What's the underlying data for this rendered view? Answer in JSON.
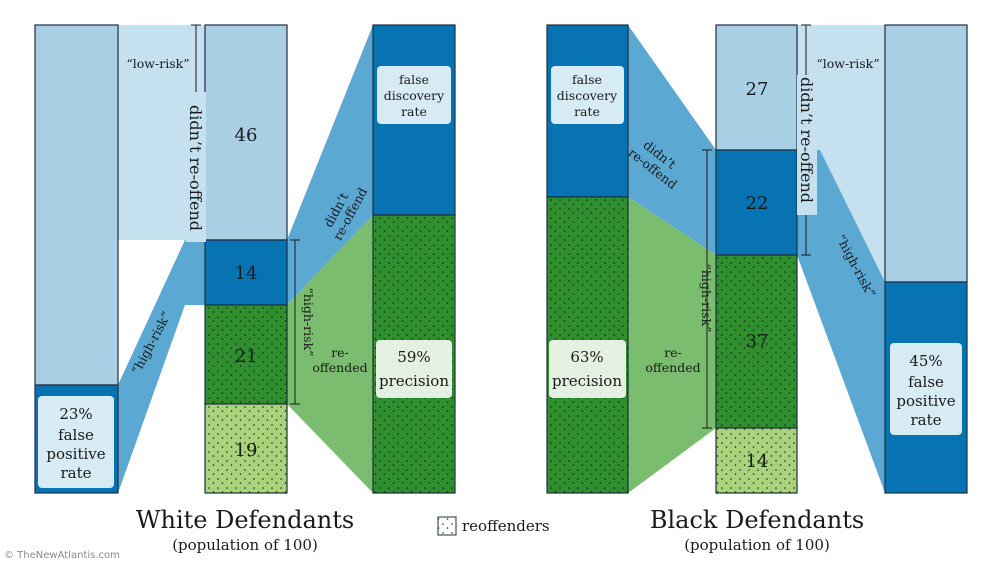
{
  "colors": {
    "light_blue": "#a9cfe4",
    "pale_blue": "#c5e0ef",
    "mid_blue": "#5ba8d3",
    "dark_blue": "#0873b2",
    "green": "#2f8f2f",
    "light_green": "#aad27c",
    "flow_green": "#7bbd6e",
    "outline": "#1e3040"
  },
  "white": {
    "title": "White Defendants",
    "subtitle": "(population of 100)",
    "low_risk": "“low-risk”",
    "high_risk": "“high-risk”",
    "didnt_reoffend": "didn’t re-offend",
    "fpr_pct": "23%",
    "fpr_l1": "false",
    "fpr_l2": "positive",
    "fpr_l3": "rate",
    "n_low_nonre": "46",
    "n_high_nonre": "14",
    "n_high_re": "21",
    "n_low_re": "19",
    "high_risk_bracket": "“high-risk”",
    "didnt_l1": "didn’t",
    "didnt_l2": "re-offend",
    "reoff_l1": "re-",
    "reoff_l2": "offended",
    "fdr_l1": "false",
    "fdr_l2": "discovery",
    "fdr_l3": "rate",
    "precision_pct": "59%",
    "precision_label": "precision"
  },
  "black": {
    "title": "Black Defendants",
    "subtitle": "(population of 100)",
    "fdr_l1": "false",
    "fdr_l2": "discovery",
    "fdr_l3": "rate",
    "precision_pct": "63%",
    "precision_label": "precision",
    "didnt_l1": "didn’t",
    "didnt_l2": "re-offend",
    "reoff_l1": "re-",
    "reoff_l2": "offended",
    "high_risk_bracket": "“high-risk”",
    "n_low_nonre": "27",
    "n_high_nonre": "22",
    "n_high_re": "37",
    "n_low_re": "14",
    "didnt_reoffend": "didn’t re-offend",
    "low_risk": "“low-risk”",
    "high_risk": "“high-risk”",
    "fpr_pct": "45%",
    "fpr_l1": "false",
    "fpr_l2": "positive",
    "fpr_l3": "rate"
  },
  "legend": {
    "label": "reoffenders"
  },
  "credit": "© TheNewAtlantis.com"
}
